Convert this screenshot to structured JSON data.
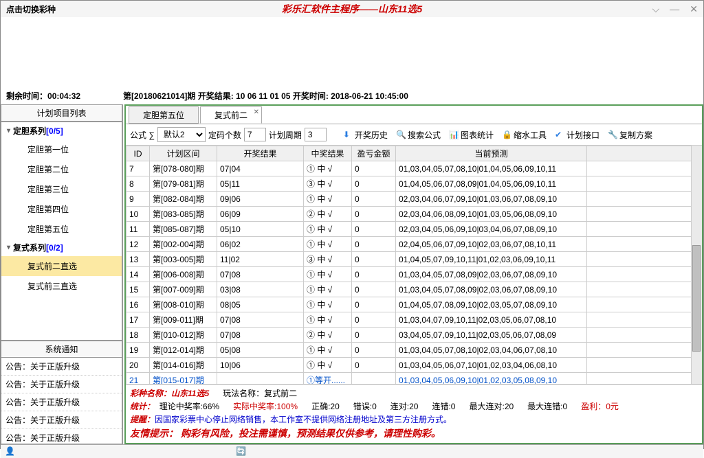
{
  "window": {
    "title_left": "点击切换彩种",
    "title_center": "彩乐汇软件主程序——山东11选5"
  },
  "info": {
    "remaining_label": "剩余时间：",
    "remaining_time": "00:04:32",
    "period_text": "第[20180621014]期  开奖结果: 10 06 11 01 05  开奖时间: 2018-06-21 10:45:00"
  },
  "sidebar": {
    "header": "计划项目列表",
    "groups": [
      {
        "label": "定胆系列",
        "count": "[0/5]",
        "items": [
          "定胆第一位",
          "定胆第二位",
          "定胆第三位",
          "定胆第四位",
          "定胆第五位"
        ]
      },
      {
        "label": "复式系列",
        "count": "[0/2]",
        "items": [
          "复式前二直选",
          "复式前三直选"
        ],
        "selected": 0
      }
    ],
    "notice_header": "系统通知",
    "notices": [
      "公告：关于正版升级",
      "公告：关于正版升级",
      "公告：关于正版升级",
      "公告：关于正版升级",
      "公告：关于正版升级"
    ]
  },
  "tabs": [
    {
      "label": "定胆第五位"
    },
    {
      "label": "复式前二",
      "closable": true,
      "active": true
    }
  ],
  "toolbar": {
    "formula_label": "公式 ∑",
    "formula_value": "默认2",
    "count_label": "定码个数",
    "count_value": "7",
    "cycle_label": "计划周期",
    "cycle_value": "3",
    "buttons": [
      {
        "label": "开奖历史",
        "icon": "download-icon",
        "ico_class": "ico-download",
        "glyph": "⬇"
      },
      {
        "label": "搜索公式",
        "icon": "search-icon",
        "ico_class": "ico-search",
        "glyph": "🔍"
      },
      {
        "label": "图表统计",
        "icon": "chart-icon",
        "ico_class": "ico-chart",
        "glyph": "📊"
      },
      {
        "label": "缩水工具",
        "icon": "lock-icon",
        "ico_class": "ico-lock",
        "glyph": "🔒"
      },
      {
        "label": "计划接口",
        "icon": "check-icon",
        "ico_class": "ico-check",
        "glyph": "✔"
      },
      {
        "label": "复制方案",
        "icon": "copy-icon",
        "ico_class": "ico-copy",
        "glyph": "🔧"
      }
    ]
  },
  "table": {
    "columns": [
      "ID",
      "计划区间",
      "开奖结果",
      "中奖结果",
      "盈亏金额",
      "当前预测",
      ""
    ],
    "rows": [
      [
        "7",
        "第[078-080]期",
        "07|04",
        "① 中 √",
        "0",
        "01,03,04,05,07,08,10|01,04,05,06,09,10,11",
        ""
      ],
      [
        "8",
        "第[079-081]期",
        "05|11",
        "③ 中 √",
        "0",
        "01,04,05,06,07,08,09|01,04,05,06,09,10,11",
        ""
      ],
      [
        "9",
        "第[082-084]期",
        "09|06",
        "① 中 √",
        "0",
        "02,03,04,06,07,09,10|01,03,06,07,08,09,10",
        ""
      ],
      [
        "10",
        "第[083-085]期",
        "06|09",
        "② 中 √",
        "0",
        "02,03,04,06,08,09,10|01,03,05,06,08,09,10",
        ""
      ],
      [
        "11",
        "第[085-087]期",
        "05|10",
        "① 中 √",
        "0",
        "02,03,04,05,06,09,10|03,04,06,07,08,09,10",
        ""
      ],
      [
        "12",
        "第[002-004]期",
        "06|02",
        "① 中 √",
        "0",
        "02,04,05,06,07,09,10|02,03,06,07,08,10,11",
        ""
      ],
      [
        "13",
        "第[003-005]期",
        "11|02",
        "③ 中 √",
        "0",
        "01,04,05,07,09,10,11|01,02,03,06,09,10,11",
        ""
      ],
      [
        "14",
        "第[006-008]期",
        "07|08",
        "① 中 √",
        "0",
        "01,03,04,05,07,08,09|02,03,06,07,08,09,10",
        ""
      ],
      [
        "15",
        "第[007-009]期",
        "03|08",
        "① 中 √",
        "0",
        "01,03,04,05,07,08,09|02,03,06,07,08,09,10",
        ""
      ],
      [
        "16",
        "第[008-010]期",
        "08|05",
        "① 中 √",
        "0",
        "01,04,05,07,08,09,10|02,03,05,07,08,09,10",
        ""
      ],
      [
        "17",
        "第[009-011]期",
        "07|08",
        "① 中 √",
        "0",
        "01,03,04,07,09,10,11|02,03,05,06,07,08,10",
        ""
      ],
      [
        "18",
        "第[010-012]期",
        "07|08",
        "② 中 √",
        "0",
        "03,04,05,07,09,10,11|02,03,05,06,07,08,09",
        ""
      ],
      [
        "19",
        "第[012-014]期",
        "05|08",
        "① 中 √",
        "0",
        "01,03,04,05,07,08,10|02,03,04,06,07,08,10",
        ""
      ],
      [
        "20",
        "第[014-016]期",
        "10|06",
        "① 中 √",
        "0",
        "01,03,04,05,06,07,10|01,02,03,04,06,08,10",
        ""
      ],
      [
        "21",
        "第[015-017]期",
        "",
        "①等开......",
        "",
        "01,03,04,05,06,09,10|01,02,03,05,08,09,10",
        ""
      ]
    ],
    "highlight_row_index": 14
  },
  "footer": {
    "name_label": "彩种名称：山东11选5",
    "play_label": "玩法名称：复式前二",
    "stats_label": "统计：",
    "theory": "理论中奖率:66%",
    "actual": "实际中奖率:100%",
    "correct": "正确:20",
    "wrong": "错误:0",
    "streak": "连对:20",
    "wrong_streak": "连错:0",
    "max_streak": "最大连对:20",
    "max_wrong": "最大连错:0",
    "profit": "盈利：0元",
    "warn_label": "提醒：",
    "warn_text": "因国家彩票中心停止网络销售，本工作室不提供网络注册地址及第三方注册方式。",
    "tips": "友情提示：  购彩有风险，投注需谨慎，预测结果仅供参考，请理性购彩。"
  }
}
